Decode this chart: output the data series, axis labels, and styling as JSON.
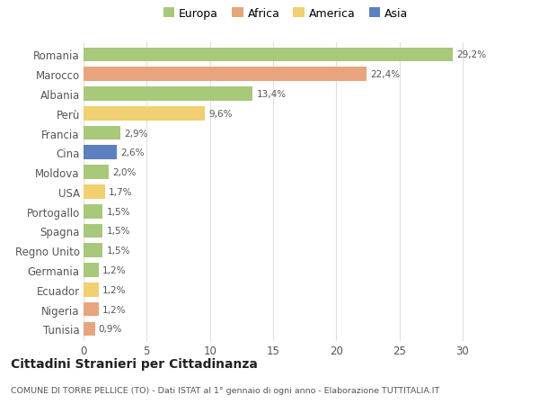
{
  "countries": [
    "Romania",
    "Marocco",
    "Albania",
    "Perù",
    "Francia",
    "Cina",
    "Moldova",
    "USA",
    "Portogallo",
    "Spagna",
    "Regno Unito",
    "Germania",
    "Ecuador",
    "Nigeria",
    "Tunisia"
  ],
  "values": [
    29.2,
    22.4,
    13.4,
    9.6,
    2.9,
    2.6,
    2.0,
    1.7,
    1.5,
    1.5,
    1.5,
    1.2,
    1.2,
    1.2,
    0.9
  ],
  "labels": [
    "29,2%",
    "22,4%",
    "13,4%",
    "9,6%",
    "2,9%",
    "2,6%",
    "2,0%",
    "1,7%",
    "1,5%",
    "1,5%",
    "1,5%",
    "1,2%",
    "1,2%",
    "1,2%",
    "0,9%"
  ],
  "continents": [
    "Europa",
    "Africa",
    "Europa",
    "America",
    "Europa",
    "Asia",
    "Europa",
    "America",
    "Europa",
    "Europa",
    "Europa",
    "Europa",
    "America",
    "Africa",
    "Africa"
  ],
  "colors": {
    "Europa": "#a8c87a",
    "Africa": "#e8a47c",
    "America": "#f0d070",
    "Asia": "#5b7fbf"
  },
  "legend_colors": {
    "Europa": "#a8c87a",
    "Africa": "#e8a47c",
    "America": "#f0d070",
    "Asia": "#5b7fbf"
  },
  "title": "Cittadini Stranieri per Cittadinanza",
  "subtitle": "COMUNE DI TORRE PELLICE (TO) - Dati ISTAT al 1° gennaio di ogni anno - Elaborazione TUTTITALIA.IT",
  "xlim": [
    0,
    32
  ],
  "xticks": [
    0,
    5,
    10,
    15,
    20,
    25,
    30
  ],
  "background_color": "#ffffff",
  "grid_color": "#e0e0e0",
  "bar_height": 0.72
}
